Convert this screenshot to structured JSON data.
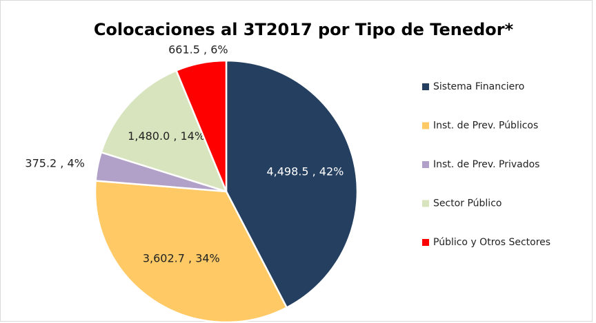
{
  "chart_data": {
    "type": "pie",
    "title": "Colocaciones al 3T2017 por Tipo de Tenedor*",
    "categories": [
      "Sistema Financiero",
      "Inst. de Prev. Públicos",
      "Inst. de Prev. Privados",
      "Sector Público",
      "Público y Otros Sectores"
    ],
    "values": [
      4498.5,
      3602.7,
      375.2,
      1480.0,
      661.5
    ],
    "value_labels": [
      "4,498.5 , 42%",
      "3,602.7 , 34%",
      "375.2 , 4%",
      "1,480.0 , 14%",
      "661.5 , 6%"
    ],
    "colors": [
      "#243f60",
      "#ffca66",
      "#b1a0c7",
      "#d7e4bd",
      "#ff0000"
    ],
    "legend": "right"
  }
}
